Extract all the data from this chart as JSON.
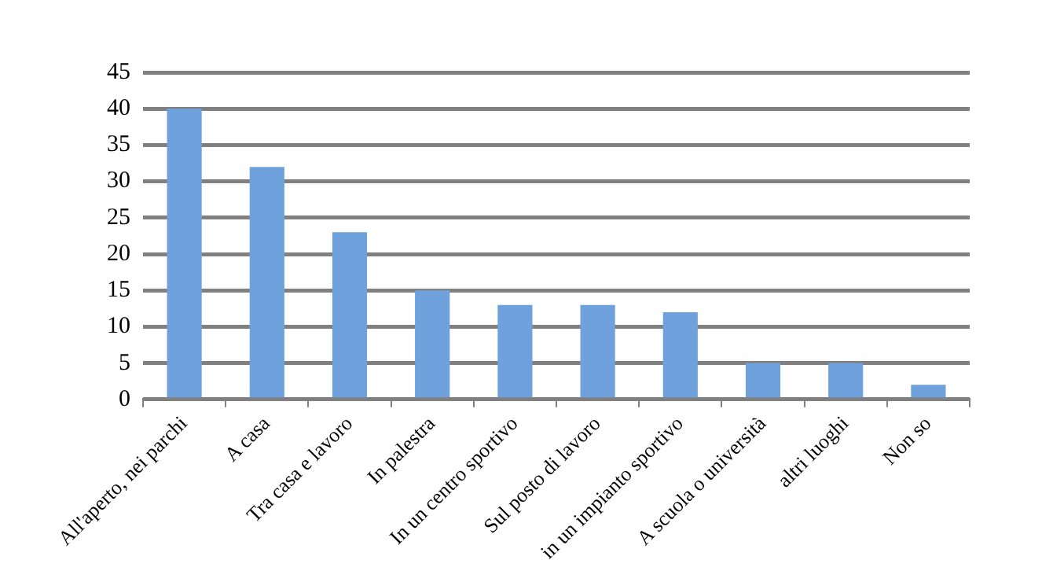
{
  "chart_data": {
    "type": "bar",
    "categories": [
      "All'aperto, nei parchi",
      "A casa",
      "Tra casa e lavoro",
      "In palestra",
      "In un centro sportivo",
      "Sul posto di lavoro",
      "in un impianto sportivo",
      "A scuola o università",
      "altri luoghi",
      "Non so"
    ],
    "values": [
      40,
      32,
      23,
      15,
      13,
      13,
      12,
      5,
      5,
      2
    ],
    "color": "#6fa2dc",
    "ylim": [
      0,
      45
    ],
    "yticks": [
      0,
      5,
      10,
      15,
      20,
      25,
      30,
      35,
      40,
      45
    ],
    "grid": "y",
    "legend": false
  }
}
